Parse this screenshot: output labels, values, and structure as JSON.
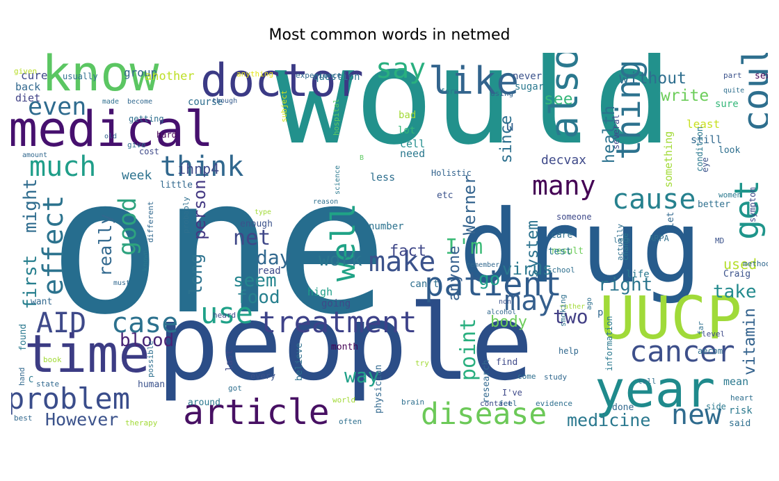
{
  "title": "Most common words in netmed",
  "words": [
    {
      "text": "would",
      "color": "#22918c"
    },
    {
      "text": "one",
      "color": "#266d8e"
    },
    {
      "text": "people",
      "color": "#2b4d87"
    },
    {
      "text": "drug",
      "color": "#275c8c"
    },
    {
      "text": "know",
      "color": "#5bc662"
    },
    {
      "text": "time",
      "color": "#3c3c84"
    },
    {
      "text": "medical",
      "color": "#46106e"
    },
    {
      "text": "doctor",
      "color": "#3b3a85"
    },
    {
      "text": "UUCP",
      "color": "#a0da39"
    },
    {
      "text": "year",
      "color": "#1f8a8c"
    },
    {
      "text": "patient",
      "color": "#2f5b8b"
    },
    {
      "text": "like",
      "color": "#32648d"
    },
    {
      "text": "problem",
      "color": "#3a4d8b"
    },
    {
      "text": "article",
      "color": "#471063"
    },
    {
      "text": "disease",
      "color": "#6cc958"
    },
    {
      "text": "treatment",
      "color": "#3e4289"
    },
    {
      "text": "even",
      "color": "#2e6b8e"
    },
    {
      "text": "much",
      "color": "#1f9e89"
    },
    {
      "text": "say",
      "color": "#29af7f"
    },
    {
      "text": "also",
      "color": "#2a788e"
    },
    {
      "text": "could",
      "color": "#2e6f8e"
    },
    {
      "text": "get",
      "color": "#1f958b"
    },
    {
      "text": "thing",
      "color": "#2c728e"
    },
    {
      "text": "think",
      "color": "#31688e"
    },
    {
      "text": "AID",
      "color": "#3e4989"
    },
    {
      "text": "case",
      "color": "#2c718e"
    },
    {
      "text": "use",
      "color": "#1fa188"
    },
    {
      "text": "cancer",
      "color": "#3d4f8a"
    },
    {
      "text": "new",
      "color": "#2f6b8e"
    },
    {
      "text": "well",
      "color": "#20a386"
    },
    {
      "text": "make",
      "color": "#3b528b"
    },
    {
      "text": "may",
      "color": "#355f8d"
    },
    {
      "text": "cause",
      "color": "#26818e"
    },
    {
      "text": "many",
      "color": "#440154"
    },
    {
      "text": "good",
      "color": "#2ea37f"
    },
    {
      "text": "effect",
      "color": "#2c738e"
    },
    {
      "text": "However",
      "color": "#3b528b"
    },
    {
      "text": "medicine",
      "color": "#2a788e"
    },
    {
      "text": "food",
      "color": "#27808e"
    },
    {
      "text": "right",
      "color": "#2b758e"
    },
    {
      "text": "take",
      "color": "#238a8d"
    },
    {
      "text": "first",
      "color": "#277f8e"
    },
    {
      "text": "might",
      "color": "#2f6c8e"
    },
    {
      "text": "without",
      "color": "#2e6e8e"
    },
    {
      "text": "write",
      "color": "#6ccd5a"
    },
    {
      "text": "see",
      "color": "#35b779"
    },
    {
      "text": "health",
      "color": "#2c728e"
    },
    {
      "text": "since",
      "color": "#2d708e"
    },
    {
      "text": "ihnp4",
      "color": "#3e4a89"
    },
    {
      "text": "work",
      "color": "#2a768e"
    },
    {
      "text": "person",
      "color": "#443983"
    },
    {
      "text": "I'm",
      "color": "#3aba76"
    },
    {
      "text": "Werner",
      "color": "#33638d"
    },
    {
      "text": "long",
      "color": "#2c728e"
    },
    {
      "text": "net",
      "color": "#3f4788"
    },
    {
      "text": "day",
      "color": "#31688e"
    },
    {
      "text": "seem",
      "color": "#25858e"
    },
    {
      "text": "blood",
      "color": "#482475"
    },
    {
      "text": "two",
      "color": "#423f85"
    },
    {
      "text": "body",
      "color": "#6ccd5a"
    },
    {
      "text": "vitamin",
      "color": "#33628d"
    },
    {
      "text": "virus",
      "color": "#2a788e"
    },
    {
      "text": "point",
      "color": "#29af7f"
    },
    {
      "text": "system",
      "color": "#2c728e"
    },
    {
      "text": "fact",
      "color": "#3f4788"
    },
    {
      "text": "anyone",
      "color": "#355f8d"
    },
    {
      "text": "go",
      "color": "#1f9e89"
    },
    {
      "text": "used",
      "color": "#b5de2b"
    },
    {
      "text": "really",
      "color": "#31688e"
    },
    {
      "text": "way",
      "color": "#1fa088"
    },
    {
      "text": "decvax",
      "color": "#3e4989"
    },
    {
      "text": "u",
      "color": "#35608d"
    },
    {
      "text": "week",
      "color": "#2c728e"
    },
    {
      "text": "cure",
      "color": "#3e4989"
    },
    {
      "text": "group",
      "color": "#33638d"
    },
    {
      "text": "another",
      "color": "#bddf26"
    },
    {
      "text": "back",
      "color": "#31688e"
    },
    {
      "text": "diet",
      "color": "#414287"
    },
    {
      "text": "course",
      "color": "#2e6e8e"
    },
    {
      "text": "question",
      "color": "#2c728e"
    },
    {
      "text": "sugar",
      "color": "#2a788e"
    },
    {
      "text": "never",
      "color": "#3b528b"
    },
    {
      "text": "usually",
      "color": "#2e6f8e"
    },
    {
      "text": "anything",
      "color": "#e5e419"
    },
    {
      "text": "experience",
      "color": "#31688e"
    },
    {
      "text": "part",
      "color": "#3b528b"
    },
    {
      "text": "sex",
      "color": "#440154"
    },
    {
      "text": "given",
      "color": "#b8de29"
    },
    {
      "text": "made",
      "color": "#2e6f8e"
    },
    {
      "text": "become",
      "color": "#31688e"
    },
    {
      "text": "though",
      "color": "#365c8d"
    },
    {
      "text": "subject",
      "color": "#d2e21b"
    },
    {
      "text": "hospital",
      "color": "#5ec962"
    },
    {
      "text": "form",
      "color": "#2a788e"
    },
    {
      "text": "using",
      "color": "#33638d"
    },
    {
      "text": "quite",
      "color": "#2e6f8e"
    },
    {
      "text": "sure",
      "color": "#35b779"
    },
    {
      "text": "bad",
      "color": "#a2da37"
    },
    {
      "text": "lot",
      "color": "#34b679"
    },
    {
      "text": "cell",
      "color": "#228d8d"
    },
    {
      "text": "need",
      "color": "#2a788e"
    },
    {
      "text": "least",
      "color": "#c8e020"
    },
    {
      "text": "still",
      "color": "#31688e"
    },
    {
      "text": "look",
      "color": "#2e6f8e"
    },
    {
      "text": "condition",
      "color": "#2a788e"
    },
    {
      "text": "eye",
      "color": "#3b528b"
    },
    {
      "text": "several",
      "color": "#3e4989"
    },
    {
      "text": "something",
      "color": "#a2da37"
    },
    {
      "text": "getting",
      "color": "#2e6f8e"
    },
    {
      "text": "old",
      "color": "#32658e"
    },
    {
      "text": "hard",
      "color": "#440154"
    },
    {
      "text": "give",
      "color": "#2e6f8e"
    },
    {
      "text": "cost",
      "color": "#3e4989"
    },
    {
      "text": "amount",
      "color": "#31688e"
    },
    {
      "text": "science",
      "color": "#2a788e"
    },
    {
      "text": "B",
      "color": "#5ec962"
    },
    {
      "text": "less",
      "color": "#2e6f8e"
    },
    {
      "text": "Holistic",
      "color": "#33638d"
    },
    {
      "text": "etc",
      "color": "#3b528b"
    },
    {
      "text": "little",
      "color": "#31688e"
    },
    {
      "text": "women",
      "color": "#2a788e"
    },
    {
      "text": "better",
      "color": "#2e6f8e"
    },
    {
      "text": "symptom",
      "color": "#3e4989"
    },
    {
      "text": "reason",
      "color": "#2e6f8e"
    },
    {
      "text": "type",
      "color": "#a2da37"
    },
    {
      "text": "different",
      "color": "#31688e"
    },
    {
      "text": "probably",
      "color": "#2e6f8e"
    },
    {
      "text": "enough",
      "color": "#3b528b"
    },
    {
      "text": "known",
      "color": "#2a788e"
    },
    {
      "text": "must",
      "color": "#31688e"
    },
    {
      "text": "number",
      "color": "#2c728e"
    },
    {
      "text": "someone",
      "color": "#3e4989"
    },
    {
      "text": "care",
      "color": "#2e6f8e"
    },
    {
      "text": "result",
      "color": "#6ccd5a"
    },
    {
      "text": "test",
      "color": "#2a788e"
    },
    {
      "text": "let",
      "color": "#31688e"
    },
    {
      "text": "actually",
      "color": "#2e6f8e"
    },
    {
      "text": "change",
      "color": "#2a788e"
    },
    {
      "text": "left",
      "color": "#2e6f8e"
    },
    {
      "text": "MD",
      "color": "#3b528b"
    },
    {
      "text": "method",
      "color": "#31688e"
    },
    {
      "text": "read",
      "color": "#3e4989"
    },
    {
      "text": "school",
      "color": "#2e6f8e"
    },
    {
      "text": "remember",
      "color": "#31688e"
    },
    {
      "text": "life",
      "color": "#2a788e"
    },
    {
      "text": "ARPA",
      "color": "#2e6f8e"
    },
    {
      "text": "Craig",
      "color": "#3b528b"
    },
    {
      "text": "can't",
      "color": "#2e6f8e"
    },
    {
      "text": "high",
      "color": "#1f9e89"
    },
    {
      "text": "want",
      "color": "#31688e"
    },
    {
      "text": "going",
      "color": "#3e4989"
    },
    {
      "text": "found",
      "color": "#2a788e"
    },
    {
      "text": "non",
      "color": "#3b528b"
    },
    {
      "text": "alcohol",
      "color": "#31688e"
    },
    {
      "text": "ago",
      "color": "#2e6f8e"
    },
    {
      "text": "p",
      "color": "#31688e"
    },
    {
      "text": "heard",
      "color": "#3e4989"
    },
    {
      "text": "rather",
      "color": "#a2da37"
    },
    {
      "text": "smoking",
      "color": "#2e6f8e"
    },
    {
      "text": "help",
      "color": "#31688e"
    },
    {
      "text": "level",
      "color": "#3e4989"
    },
    {
      "text": "far",
      "color": "#2e6f8e"
    },
    {
      "text": "information",
      "color": "#2a788e"
    },
    {
      "text": "book",
      "color": "#a2da37"
    },
    {
      "text": "last",
      "color": "#3e4989"
    },
    {
      "text": "believe",
      "color": "#2e6f8e"
    },
    {
      "text": "month",
      "color": "#440154"
    },
    {
      "text": "research",
      "color": "#31688e"
    },
    {
      "text": "find",
      "color": "#3e4989"
    },
    {
      "text": "aecom",
      "color": "#2e6f8e"
    },
    {
      "text": "hand",
      "color": "#31688e"
    },
    {
      "text": "possible",
      "color": "#2e6f8e"
    },
    {
      "text": "C",
      "color": "#2a788e"
    },
    {
      "text": "every",
      "color": "#3b528b"
    },
    {
      "text": "try",
      "color": "#a2da37"
    },
    {
      "text": "come",
      "color": "#2e6f8e"
    },
    {
      "text": "study",
      "color": "#31688e"
    },
    {
      "text": "tell",
      "color": "#2e6f8e"
    },
    {
      "text": "I've",
      "color": "#3e4989"
    },
    {
      "text": "mean",
      "color": "#2a788e"
    },
    {
      "text": "heart",
      "color": "#2e6f8e"
    },
    {
      "text": "state",
      "color": "#31688e"
    },
    {
      "text": "human",
      "color": "#3b528b"
    },
    {
      "text": "got",
      "color": "#2e6f8e"
    },
    {
      "text": "physician",
      "color": "#31688e"
    },
    {
      "text": "around",
      "color": "#2a788e"
    },
    {
      "text": "world",
      "color": "#a2da37"
    },
    {
      "text": "brain",
      "color": "#2e6f8e"
    },
    {
      "text": "contact",
      "color": "#3e4989"
    },
    {
      "text": "feel",
      "color": "#31688e"
    },
    {
      "text": "evidence",
      "color": "#2e6f8e"
    },
    {
      "text": "side",
      "color": "#2a788e"
    },
    {
      "text": "best",
      "color": "#31688e"
    },
    {
      "text": "therapy",
      "color": "#a2da37"
    },
    {
      "text": "often",
      "color": "#2e6f8e"
    },
    {
      "text": "done",
      "color": "#31688e"
    },
    {
      "text": "risk",
      "color": "#2a788e"
    },
    {
      "text": "said",
      "color": "#2e6f8e"
    }
  ]
}
